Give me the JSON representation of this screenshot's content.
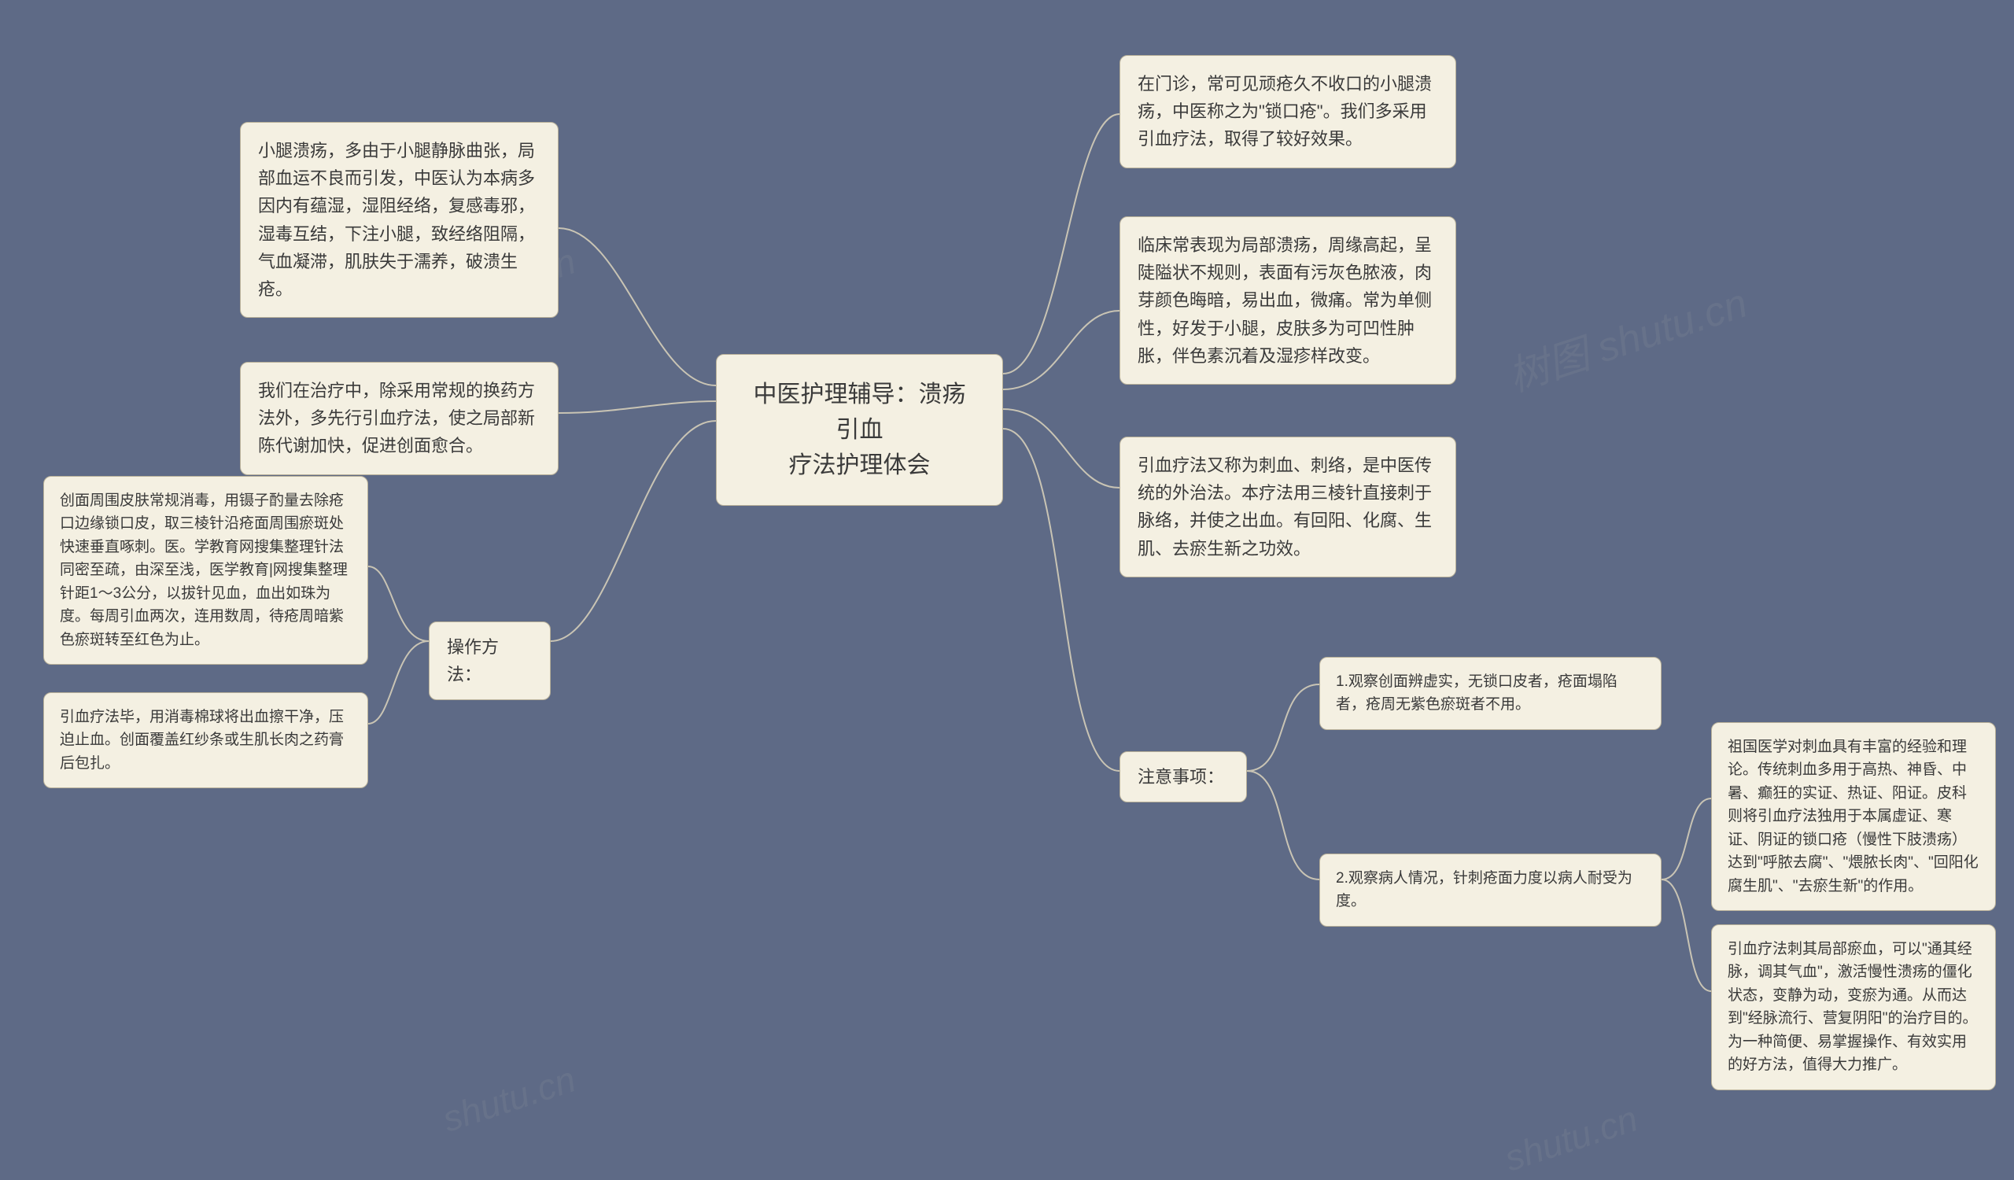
{
  "background_color": "#5e6a86",
  "node_bg": "#f4f0e2",
  "node_border": "#b8b099",
  "connector_color": "#c9c4b4",
  "center": {
    "title": "中医护理辅导：溃疡引血\n疗法护理体会"
  },
  "left": {
    "n1": "小腿溃疡，多由于小腿静脉曲张，局部血运不良而引发，中医认为本病多因内有蕴湿，湿阻经络，复感毒邪，湿毒互结，下注小腿，致经络阻隔，气血凝滞，肌肤失于濡养，破溃生疮。",
    "n2": "我们在治疗中，除采用常规的换药方法外，多先行引血疗法，使之局部新陈代谢加快，促进创面愈合。",
    "op_label": "操作方法：",
    "op1": "创面周围皮肤常规消毒，用镊子酌量去除疮口边缘锁口皮，取三棱针沿疮面周围瘀斑处快速垂直啄刺。医。学教育网搜集整理针法同密至疏，由深至浅，医学教育|网搜集整理针距1～3公分，以拔针见血，血出如珠为度。每周引血两次，连用数周，待疮周暗紫色瘀斑转至红色为止。",
    "op2": "引血疗法毕，用消毒棉球将出血擦干净，压迫止血。创面覆盖红纱条或生肌长肉之药膏后包扎。"
  },
  "right": {
    "r1": "在门诊，常可见顽疮久不收口的小腿溃疡，中医称之为\"锁口疮\"。我们多采用引血疗法，取得了较好效果。",
    "r2": "临床常表现为局部溃疡，周缘高起，呈陡隘状不规则，表面有污灰色脓液，肉芽颜色晦暗，易出血，微痛。常为单侧性，好发于小腿，皮肤多为可凹性肿胀，伴色素沉着及湿疹样改变。",
    "r3": "引血疗法又称为刺血、刺络，是中医传统的外治法。本疗法用三棱针直接刺于脉络，并使之出血。有回阳、化腐、生肌、去瘀生新之功效。",
    "note_label": "注意事项：",
    "note1": "1.观察创面辨虚实，无锁口皮者，疮面塌陷者，疮周无紫色瘀斑者不用。",
    "note2": "2.观察病人情况，针刺疮面力度以病人耐受为度。",
    "note2_c1": "祖国医学对刺血具有丰富的经验和理论。传统刺血多用于高热、神昏、中暑、癫狂的实证、热证、阳证。皮科则将引血疗法独用于本属虚证、寒证、阴证的锁口疮（慢性下肢溃疡）达到\"呼脓去腐\"、\"煨脓长肉\"、\"回阳化腐生肌\"、\"去瘀生新\"的作用。",
    "note2_c2": "引血疗法刺其局部瘀血，可以\"通其经脉，调其气血\"，激活慢性溃疡的僵化状态，变静为动，变瘀为通。从而达到\"经脉流行、营复阴阳\"的治疗目的。为一种简便、易掌握操作、有效实用的好方法，值得大力推广。"
  },
  "watermarks": {
    "w1": "shutu.cn",
    "w2": "shutu.cn",
    "w3": "树图 shutu.cn",
    "w4": "shutu.cn"
  }
}
